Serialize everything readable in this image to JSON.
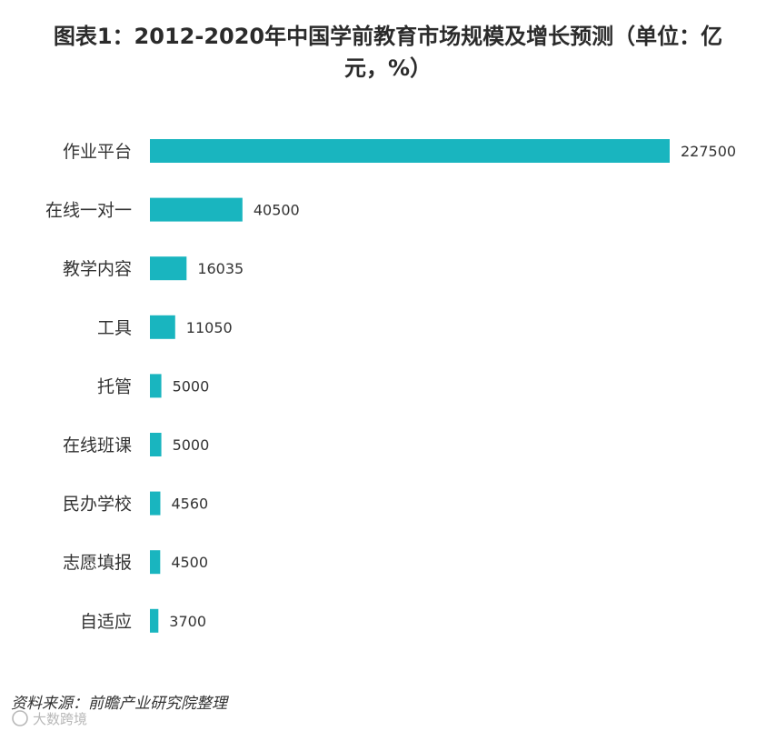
{
  "chart_data": {
    "type": "bar",
    "orientation": "horizontal",
    "title_line1": "图表1：2012-2020年中国学前教育市场规模及增长预测（单位：亿",
    "title_line2": "元，%）",
    "categories": [
      "作业平台",
      "在线一对一",
      "教学内容",
      "工具",
      "托管",
      "在线班课",
      "民办学校",
      "志愿填报",
      "自适应"
    ],
    "values": [
      227500,
      40500,
      16035,
      11050,
      5000,
      5000,
      4560,
      4500,
      3700
    ],
    "value_labels": [
      "227500",
      "40500",
      "16035",
      "11050",
      "5000",
      "5000",
      "4560",
      "4500",
      "3700"
    ],
    "xlim": [
      0,
      227500
    ],
    "grid": false,
    "legend": "none",
    "bar_color": "#19b5bf",
    "source": "资料来源：前瞻产业研究院整理",
    "watermark": "大数跨境"
  }
}
